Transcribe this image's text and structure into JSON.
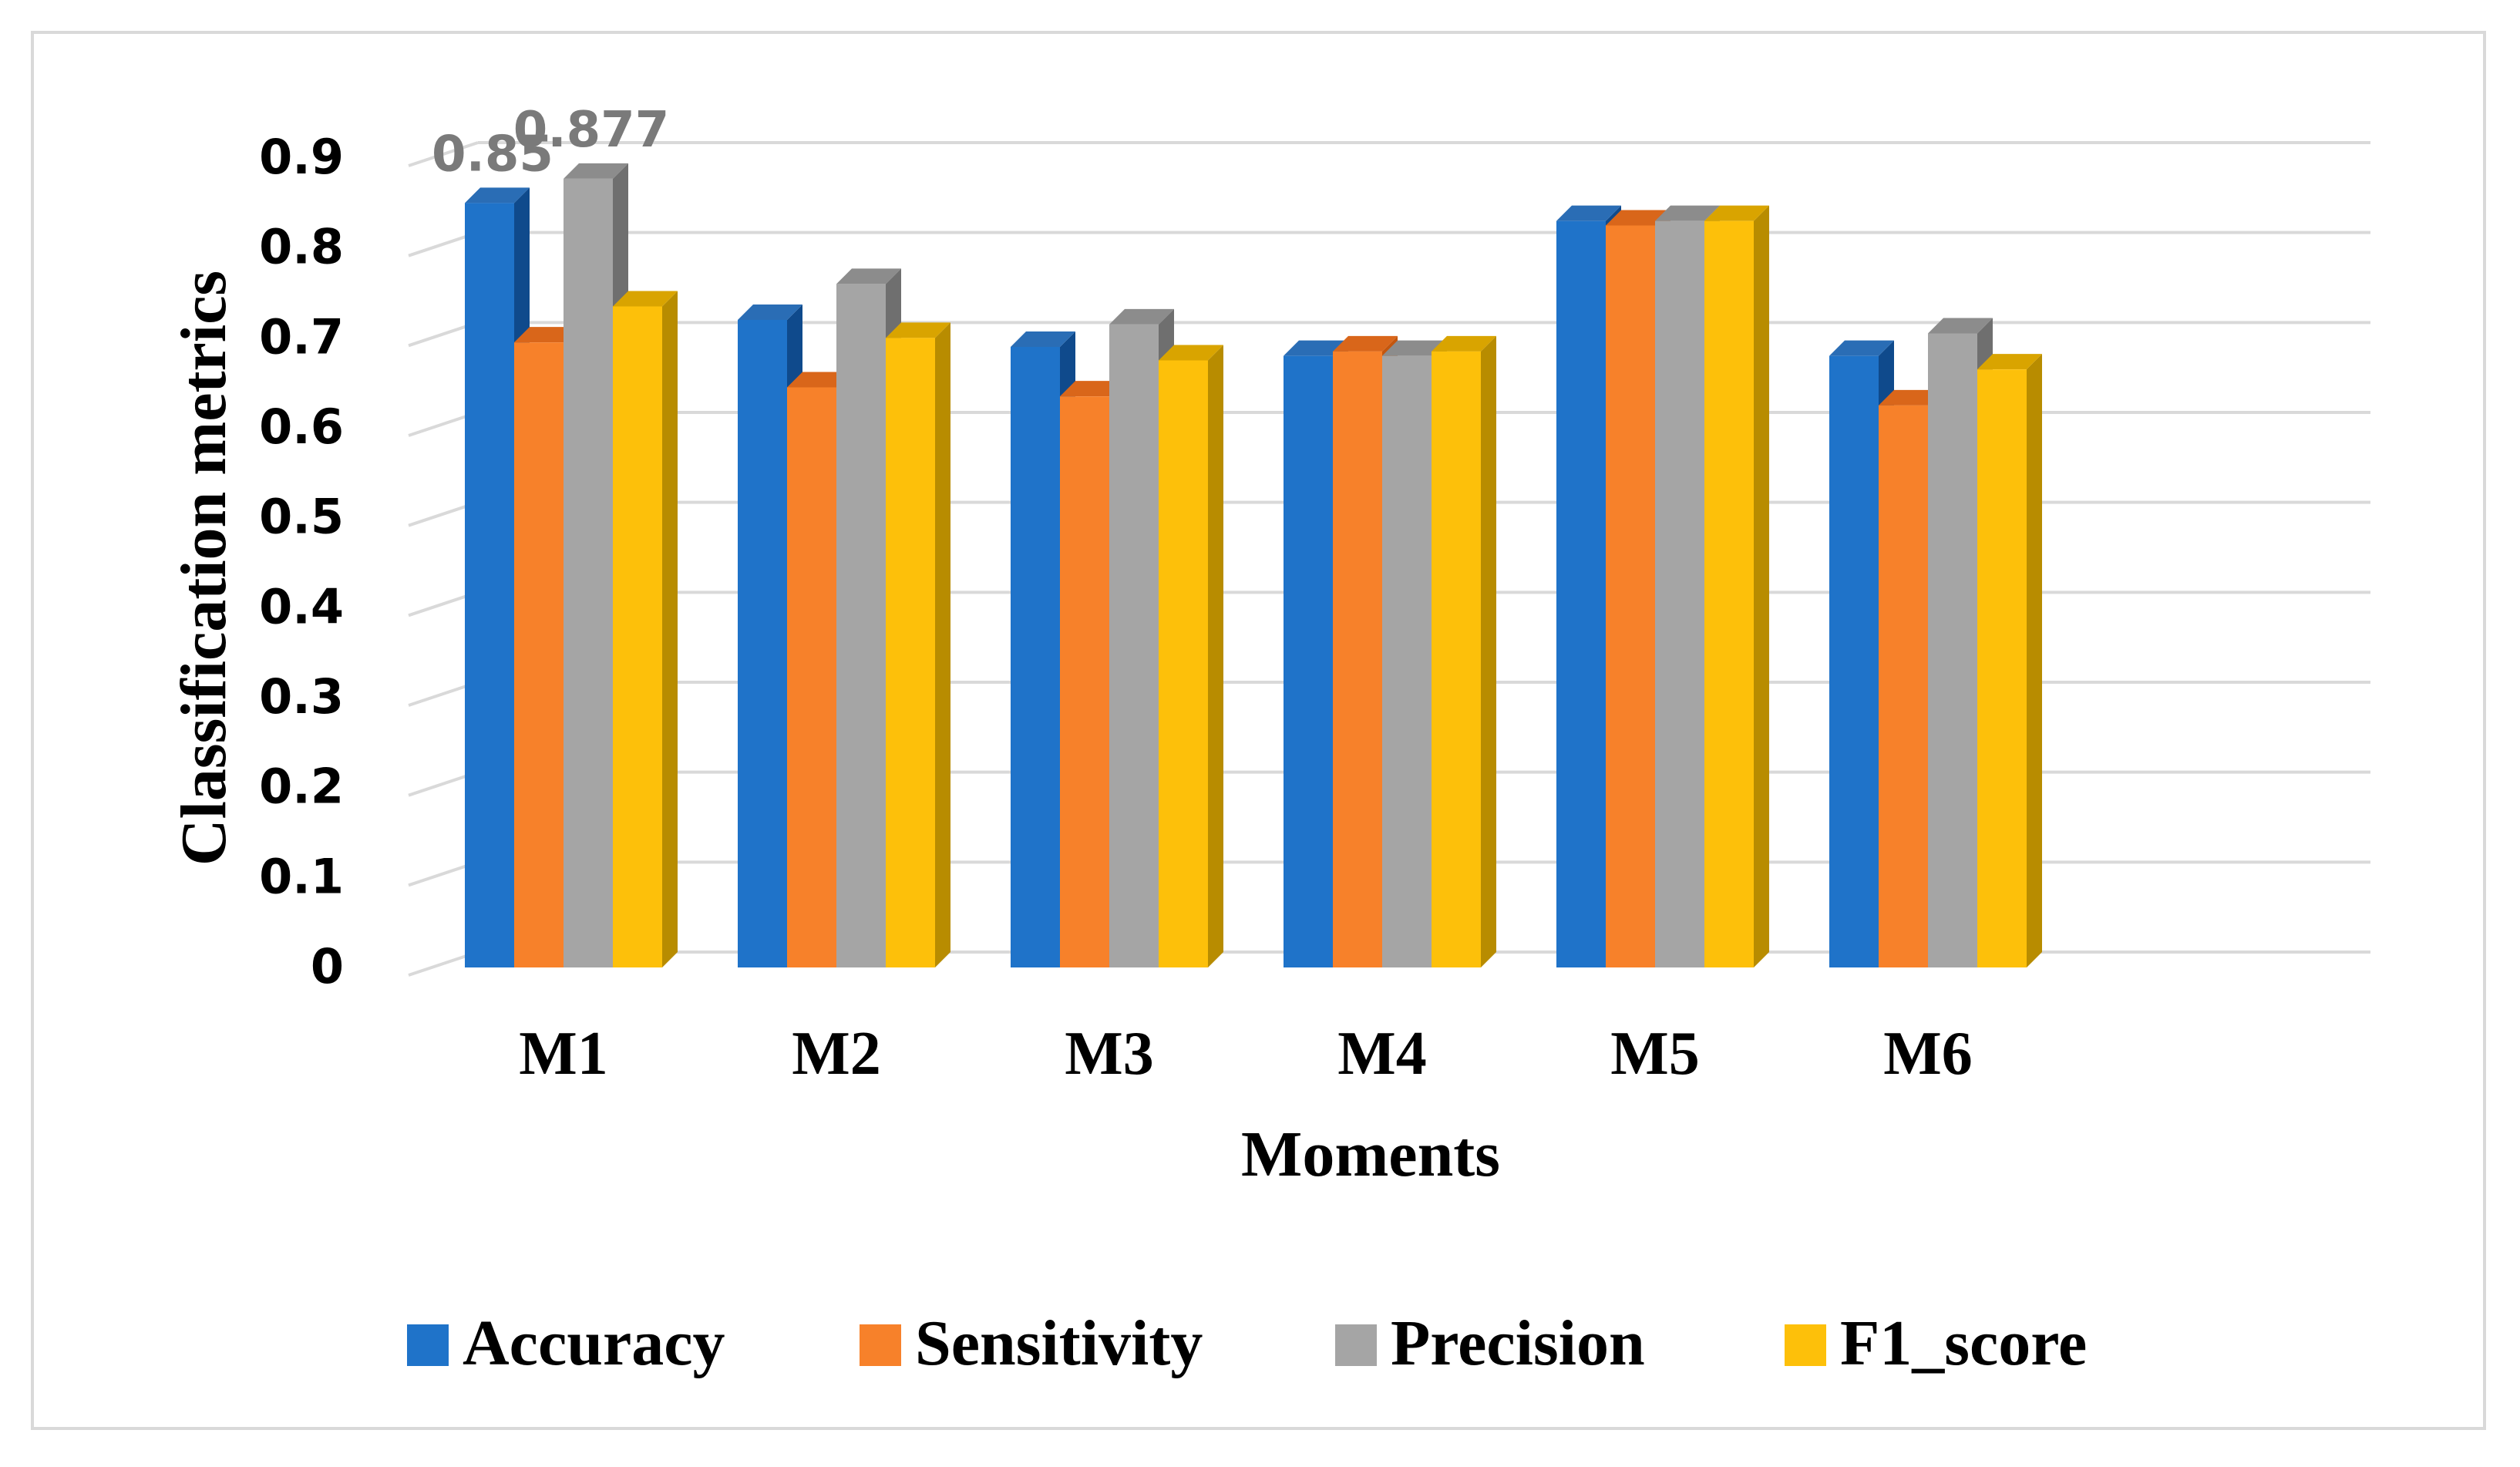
{
  "chart_data": {
    "type": "bar",
    "style": "3d-clustered-column",
    "title": "",
    "xlabel": "Moments",
    "ylabel": "Classification metrics",
    "ylim": [
      0,
      0.9
    ],
    "yticks": [
      "0",
      "0.1",
      "0.2",
      "0.3",
      "0.4",
      "0.5",
      "0.6",
      "0.7",
      "0.8",
      "0.9"
    ],
    "grid": true,
    "legend_position": "bottom",
    "categories": [
      "M1",
      "M2",
      "M3",
      "M4",
      "M5",
      "M6"
    ],
    "series": [
      {
        "name": "Accuracy",
        "color": "#1f73c9",
        "side_color": "#0f4a8c",
        "top_color": "#2a6db5",
        "values": [
          0.85,
          0.72,
          0.69,
          0.68,
          0.83,
          0.68
        ]
      },
      {
        "name": "Sensitivity",
        "color": "#f7812a",
        "side_color": "#c4560e",
        "top_color": "#d9661a",
        "values": [
          0.695,
          0.645,
          0.635,
          0.685,
          0.825,
          0.625
        ]
      },
      {
        "name": "Precision",
        "color": "#a5a5a5",
        "side_color": "#6f6f6f",
        "top_color": "#8c8c8c",
        "values": [
          0.877,
          0.76,
          0.715,
          0.68,
          0.83,
          0.705
        ]
      },
      {
        "name": "F1_score",
        "color": "#fdc00a",
        "side_color": "#b88c00",
        "top_color": "#d9a400",
        "values": [
          0.735,
          0.7,
          0.675,
          0.685,
          0.83,
          0.665
        ]
      }
    ],
    "annotations": [
      {
        "text": "0.85",
        "category": "M1",
        "series": "Accuracy"
      },
      {
        "text": "0.877",
        "category": "M1",
        "series": "Precision"
      }
    ]
  }
}
